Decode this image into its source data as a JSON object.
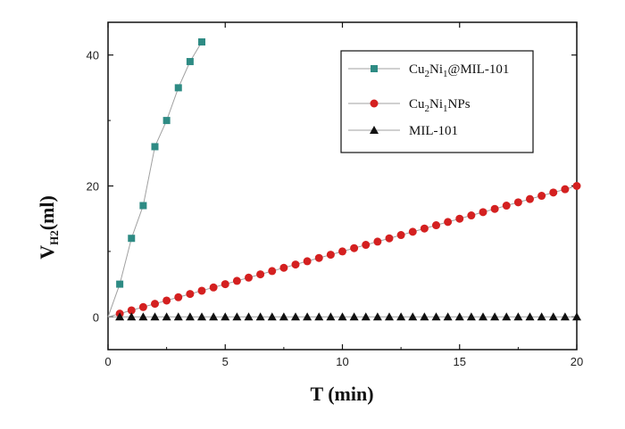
{
  "chart_data": {
    "type": "line",
    "xlabel": "T (min)",
    "ylabel_main": "V",
    "ylabel_sub": "H2",
    "ylabel_unit": "(ml)",
    "xlim": [
      0,
      20
    ],
    "ylim": [
      -5,
      45
    ],
    "xticks": [
      "0",
      "5",
      "10",
      "15",
      "20"
    ],
    "yticks": [
      "0",
      "20",
      "40"
    ],
    "grid": false,
    "legend_position": "top-right",
    "series": [
      {
        "legend": [
          "Cu",
          "2",
          "Ni",
          "1",
          "@MIL-101"
        ],
        "marker": "square",
        "color": "#2e8b84",
        "line_color": "#a0a0a0",
        "x": [
          0,
          0.5,
          1,
          1.5,
          2,
          2.5,
          3,
          3.5,
          4
        ],
        "y": [
          0,
          5,
          12,
          17,
          26,
          30,
          35,
          39,
          42
        ]
      },
      {
        "legend": [
          "Cu",
          "2",
          "Ni",
          "1",
          "NPs"
        ],
        "marker": "circle",
        "color": "#d42020",
        "line_color": "#a0a0a0",
        "x": [
          0,
          0.5,
          1,
          1.5,
          2,
          2.5,
          3,
          3.5,
          4,
          4.5,
          5,
          5.5,
          6,
          6.5,
          7,
          7.5,
          8,
          8.5,
          9,
          9.5,
          10,
          10.5,
          11,
          11.5,
          12,
          12.5,
          13,
          13.5,
          14,
          14.5,
          15,
          15.5,
          16,
          16.5,
          17,
          17.5,
          18,
          18.5,
          19,
          19.5,
          20
        ],
        "y": [
          0,
          0.5,
          1,
          1.5,
          2,
          2.5,
          3,
          3.5,
          4,
          4.5,
          5,
          5.5,
          6,
          6.5,
          7,
          7.5,
          8,
          8.5,
          9,
          9.5,
          10,
          10.5,
          11,
          11.5,
          12,
          12.5,
          13,
          13.5,
          14,
          14.5,
          15,
          15.5,
          16,
          16.5,
          17,
          17.5,
          18,
          18.5,
          19,
          19.5,
          20
        ]
      },
      {
        "legend": [
          "MIL-101"
        ],
        "marker": "triangle",
        "color": "#111111",
        "line_color": "#a0a0a0",
        "x": [
          0,
          0.5,
          1,
          1.5,
          2,
          2.5,
          3,
          3.5,
          4,
          4.5,
          5,
          5.5,
          6,
          6.5,
          7,
          7.5,
          8,
          8.5,
          9,
          9.5,
          10,
          10.5,
          11,
          11.5,
          12,
          12.5,
          13,
          13.5,
          14,
          14.5,
          15,
          15.5,
          16,
          16.5,
          17,
          17.5,
          18,
          18.5,
          19,
          19.5,
          20
        ],
        "y": [
          0,
          0,
          0,
          0,
          0,
          0,
          0,
          0,
          0,
          0,
          0,
          0,
          0,
          0,
          0,
          0,
          0,
          0,
          0,
          0,
          0,
          0,
          0,
          0,
          0,
          0,
          0,
          0,
          0,
          0,
          0,
          0,
          0,
          0,
          0,
          0,
          0,
          0,
          0,
          0,
          0
        ]
      }
    ]
  }
}
